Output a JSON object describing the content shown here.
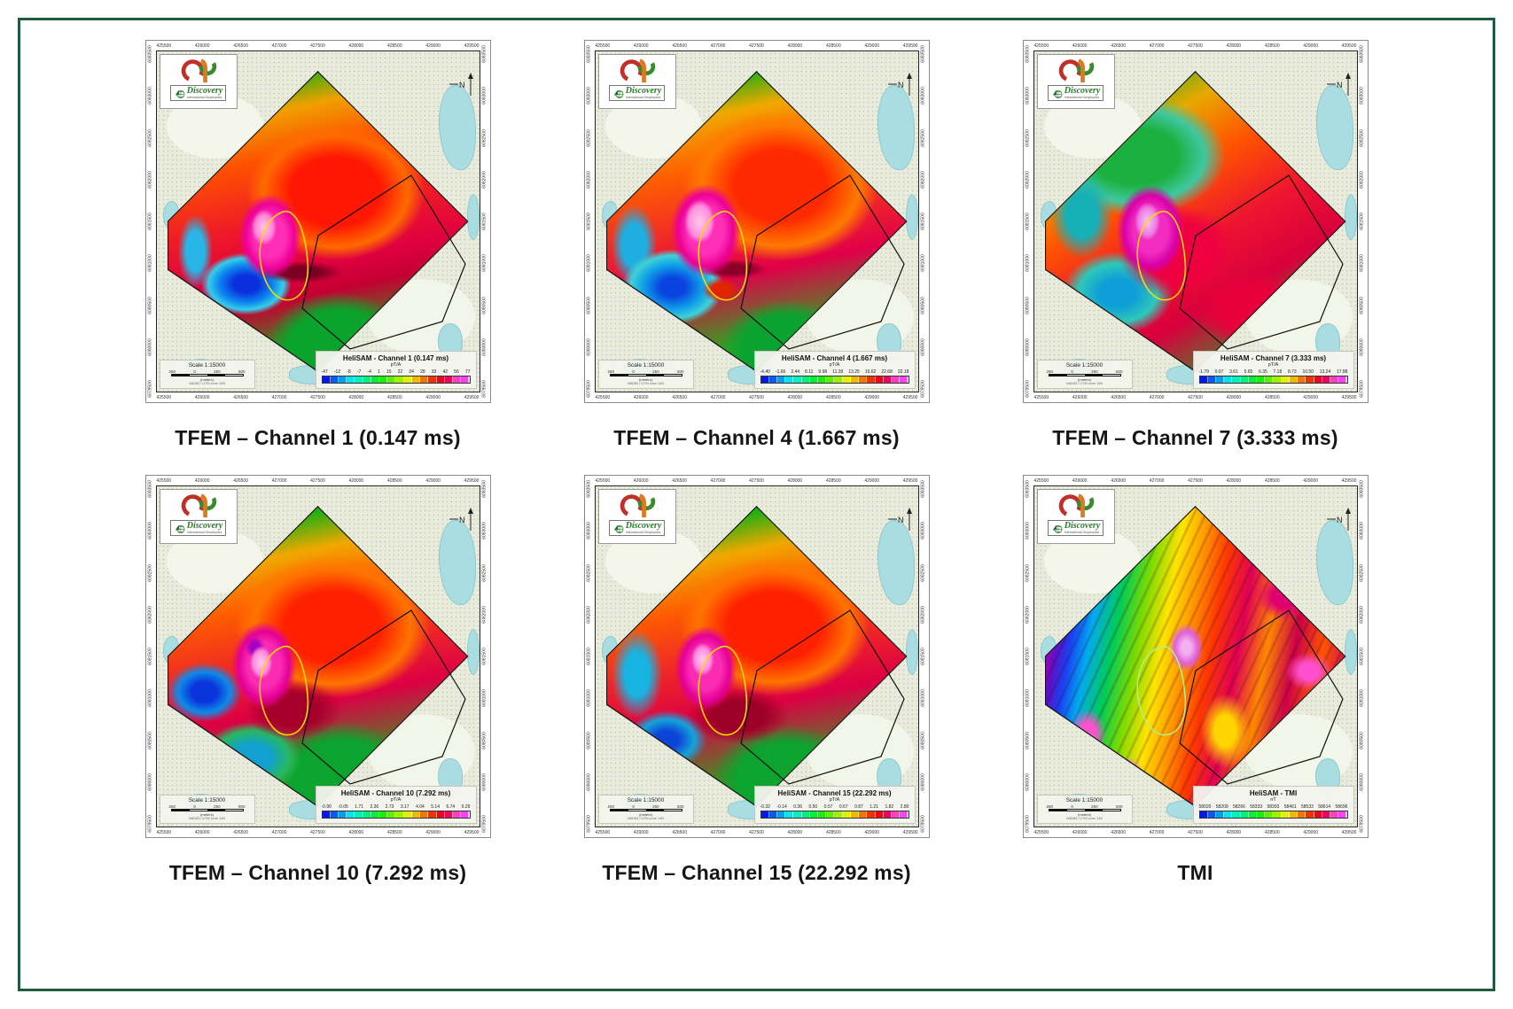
{
  "frame": {
    "border_color": "#1e5b40",
    "background": "#ffffff"
  },
  "base_map": {
    "eastings": [
      "425500",
      "426000",
      "426500",
      "427000",
      "427500",
      "428000",
      "428500",
      "429000",
      "429500"
    ],
    "northings": [
      "6083500",
      "6083000",
      "6082500",
      "6082000",
      "6081500",
      "6081000",
      "6080500",
      "6080000",
      "6079500"
    ],
    "scale": {
      "label": "Scale 1:15000",
      "bar_ticks": [
        "250",
        "0",
        "250",
        "500"
      ],
      "units": "(meters)",
      "datum": "NAD83 / UTM zone 14N"
    },
    "north_arrow": "N",
    "logo": {
      "name": "Discovery",
      "subtitle": "International Geophysics"
    }
  },
  "panels": [
    {
      "caption": "TFEM – Channel 1 (0.147 ms)",
      "legend": {
        "title": "HeliSAM - Channel 1 (0.147 ms)",
        "unit": "pT/A",
        "values": [
          "-47",
          "-12",
          "-8",
          "-7",
          "-4",
          "1",
          "15",
          "22",
          "24",
          "28",
          "33",
          "42",
          "56",
          "77"
        ]
      },
      "style": "ch1"
    },
    {
      "caption": "TFEM – Channel 4 (1.667 ms)",
      "legend": {
        "title": "HeliSAM - Channel 4 (1.667 ms)",
        "unit": "pT/A",
        "values": [
          "-4.40",
          "-1.66",
          "2.44",
          "8.11",
          "9.98",
          "11.39",
          "13.25",
          "16.62",
          "22.68",
          "32.18"
        ]
      },
      "style": "ch4"
    },
    {
      "caption": "TFEM – Channel 7 (3.333 ms)",
      "legend": {
        "title": "HeliSAM - Channel 7 (3.333 ms)",
        "unit": "pT/A",
        "values": [
          "-1.79",
          "0.07",
          "3.61",
          "5.65",
          "6.35",
          "7.18",
          "8.73",
          "10.50",
          "13.24",
          "17.88"
        ]
      },
      "style": "ch7"
    },
    {
      "caption": "TFEM – Channel 10 (7.292 ms)",
      "legend": {
        "title": "HeliSAM - Channel 10 (7.292 ms)",
        "unit": "pT/A",
        "values": [
          "-0.90",
          "-0.05",
          "1.71",
          "2.36",
          "2.73",
          "3.17",
          "4.04",
          "5.14",
          "6.74",
          "9.29"
        ]
      },
      "style": "ch10"
    },
    {
      "caption": "TFEM – Channel 15 (22.292 ms)",
      "legend": {
        "title": "HeliSAM - Channel 15 (22.292 ms)",
        "unit": "pT/A",
        "values": [
          "-0.32",
          "-0.14",
          "0.36",
          "0.50",
          "0.57",
          "0.67",
          "0.87",
          "1.21",
          "1.82",
          "2.80"
        ]
      },
      "style": "ch15"
    },
    {
      "caption": "TMI",
      "legend": {
        "title": "HeliSAM - TMI",
        "unit": "nT",
        "values": [
          "58020",
          "58209",
          "58266",
          "58333",
          "58393",
          "58461",
          "58533",
          "58614",
          "58696"
        ]
      },
      "style": "tmi"
    }
  ]
}
